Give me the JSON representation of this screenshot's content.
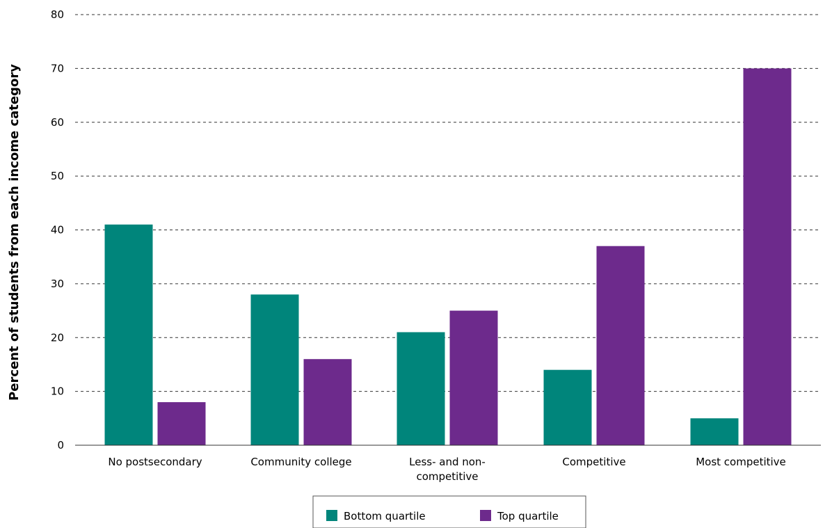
{
  "chart_data": {
    "type": "bar",
    "title": "",
    "xlabel": "",
    "ylabel": "Percent of students from each income category",
    "ylim": [
      0,
      80
    ],
    "yticks": [
      "0",
      "10",
      "20",
      "30",
      "40",
      "50",
      "60",
      "70",
      "80"
    ],
    "grid": "horizontal dashed",
    "categories": [
      [
        "No postsecondary"
      ],
      [
        "Community college"
      ],
      [
        "Less- and non-",
        "competitive"
      ],
      [
        "Competitive"
      ],
      [
        "Most competitive"
      ]
    ],
    "series": [
      {
        "name": "Bottom quartile",
        "color": "#00857b",
        "values": [
          41,
          28,
          21,
          14,
          5
        ]
      },
      {
        "name": "Top quartile",
        "color": "#6d2a8c",
        "values": [
          8,
          16,
          25,
          37,
          70
        ]
      }
    ],
    "legend_position": "bottom-center"
  }
}
